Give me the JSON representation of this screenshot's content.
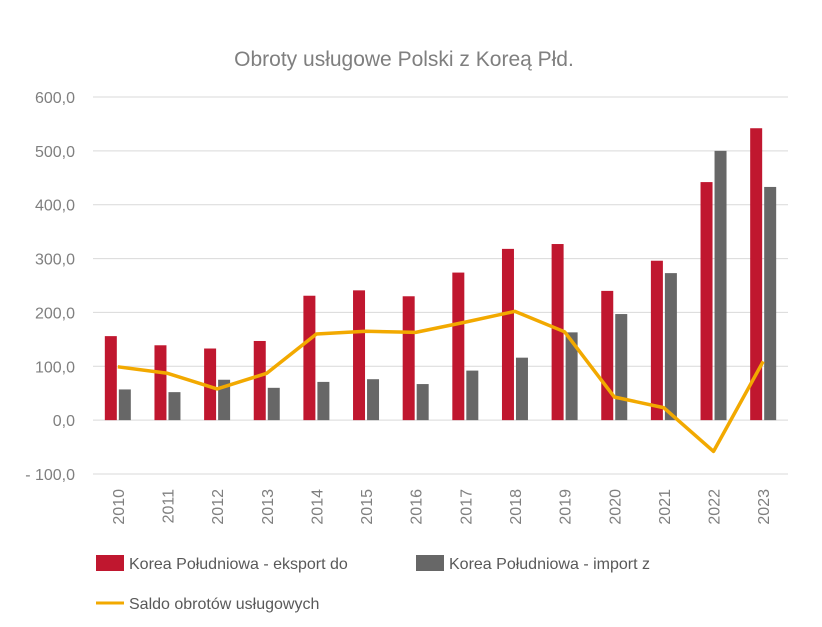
{
  "chart_data": {
    "type": "bar",
    "title": "Obroty usługowe Polski z Koreą Płd.",
    "categories": [
      "2010",
      "2011",
      "2012",
      "2013",
      "2014",
      "2015",
      "2016",
      "2017",
      "2018",
      "2019",
      "2020",
      "2021",
      "2022",
      "2023"
    ],
    "series": [
      {
        "name": "Korea Południowa - eksport do",
        "type": "bar",
        "color": "#c0172f",
        "values": [
          156,
          139,
          133,
          147,
          231,
          241,
          230,
          274,
          318,
          327,
          240,
          296,
          442,
          542
        ]
      },
      {
        "name": "Korea Południowa - import z",
        "type": "bar",
        "color": "#676767",
        "values": [
          57,
          52,
          75,
          60,
          71,
          76,
          67,
          92,
          116,
          163,
          197,
          273,
          500,
          433
        ]
      },
      {
        "name": "Saldo obrotów usługowych",
        "type": "line",
        "color": "#f2a900",
        "values": [
          99,
          87,
          58,
          87,
          160,
          165,
          163,
          182,
          202,
          164,
          43,
          23,
          -58,
          109
        ]
      }
    ],
    "yticks": [
      "600,0",
      "500,0",
      "400,0",
      "300,0",
      "200,0",
      "100,0",
      "0,0",
      "- 100,0"
    ],
    "ylim": [
      -100,
      600
    ],
    "grid": true,
    "legend_position": "bottom"
  }
}
